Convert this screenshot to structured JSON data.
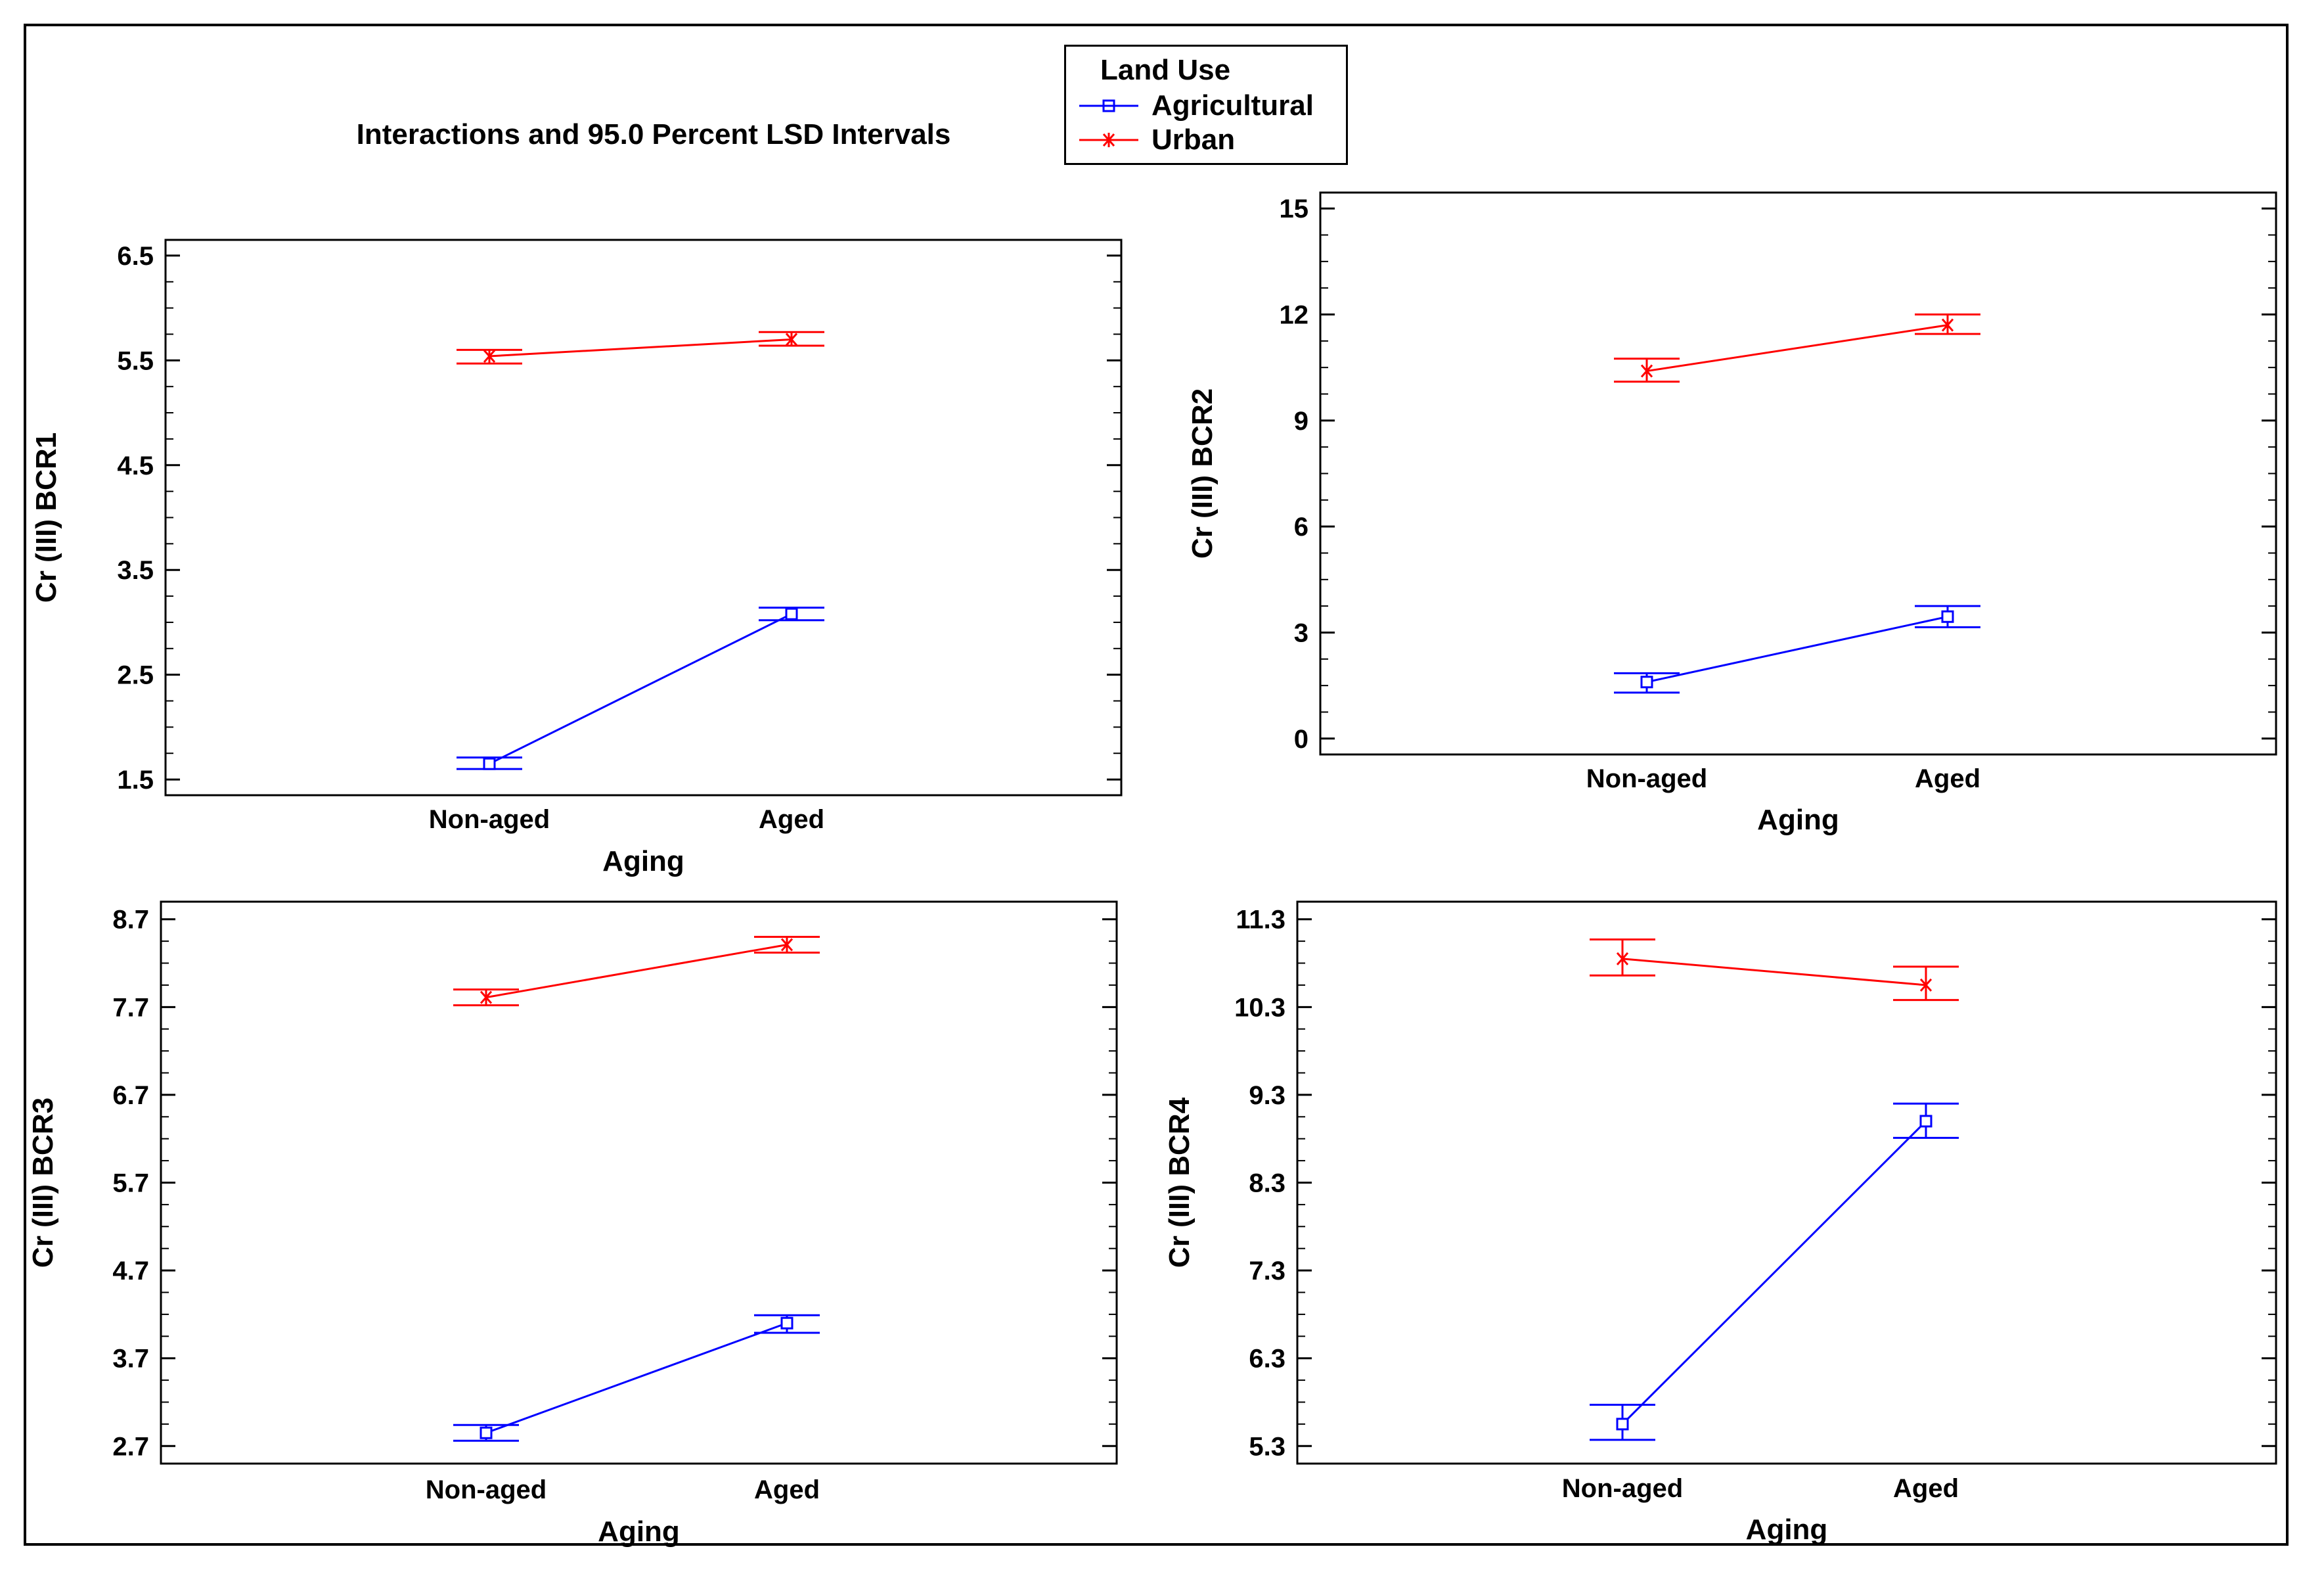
{
  "title": "Interactions and 95.0 Percent LSD Intervals",
  "legend": {
    "title": "Land Use",
    "items": [
      {
        "label": "Agricultural",
        "color": "#0000ff",
        "marker": "square"
      },
      {
        "label": "Urban",
        "color": "#ff0000",
        "marker": "star"
      }
    ]
  },
  "chart_data": [
    {
      "type": "line",
      "title": "",
      "xlabel": "Aging",
      "ylabel": "Cr (III) BCR1",
      "categories": [
        "Non-aged",
        "Aged"
      ],
      "yticks": [
        "1.5",
        "2.5",
        "3.5",
        "4.5",
        "5.5",
        "6.5"
      ],
      "ylim": [
        1.35,
        6.65
      ],
      "grid": false,
      "series": [
        {
          "name": "Agricultural",
          "color": "#0000ff",
          "marker": "square",
          "values": [
            1.65,
            3.08
          ],
          "ci_low": [
            1.6,
            3.02
          ],
          "ci_high": [
            1.71,
            3.14
          ]
        },
        {
          "name": "Urban",
          "color": "#ff0000",
          "marker": "star",
          "values": [
            5.54,
            5.7
          ],
          "ci_low": [
            5.47,
            5.64
          ],
          "ci_high": [
            5.6,
            5.77
          ]
        }
      ]
    },
    {
      "type": "line",
      "title": "",
      "xlabel": "Aging",
      "ylabel": "Cr (III) BCR2",
      "categories": [
        "Non-aged",
        "Aged"
      ],
      "yticks": [
        "0",
        "3",
        "6",
        "9",
        "12",
        "15"
      ],
      "ylim": [
        -0.45,
        15.45
      ],
      "grid": false,
      "series": [
        {
          "name": "Agricultural",
          "color": "#0000ff",
          "marker": "square",
          "values": [
            1.6,
            3.45
          ],
          "ci_low": [
            1.3,
            3.15
          ],
          "ci_high": [
            1.85,
            3.75
          ]
        },
        {
          "name": "Urban",
          "color": "#ff0000",
          "marker": "star",
          "values": [
            10.4,
            11.7
          ],
          "ci_low": [
            10.1,
            11.45
          ],
          "ci_high": [
            10.75,
            12.0
          ]
        }
      ]
    },
    {
      "type": "line",
      "title": "",
      "xlabel": "Aging",
      "ylabel": "Cr (III) BCR3",
      "categories": [
        "Non-aged",
        "Aged"
      ],
      "yticks": [
        "2.7",
        "3.7",
        "4.7",
        "5.7",
        "6.7",
        "7.7",
        "8.7"
      ],
      "ylim": [
        2.5,
        8.9
      ],
      "grid": false,
      "series": [
        {
          "name": "Agricultural",
          "color": "#0000ff",
          "marker": "square",
          "values": [
            2.85,
            4.1
          ],
          "ci_low": [
            2.76,
            3.99
          ],
          "ci_high": [
            2.94,
            4.19
          ]
        },
        {
          "name": "Urban",
          "color": "#ff0000",
          "marker": "star",
          "values": [
            7.81,
            8.41
          ],
          "ci_low": [
            7.72,
            8.32
          ],
          "ci_high": [
            7.9,
            8.5
          ]
        }
      ]
    },
    {
      "type": "line",
      "title": "",
      "xlabel": "Aging",
      "ylabel": "Cr (III) BCR4",
      "categories": [
        "Non-aged",
        "Aged"
      ],
      "yticks": [
        "5.3",
        "6.3",
        "7.3",
        "8.3",
        "9.3",
        "10.3",
        "11.3"
      ],
      "ylim": [
        5.1,
        11.5
      ],
      "grid": false,
      "series": [
        {
          "name": "Agricultural",
          "color": "#0000ff",
          "marker": "square",
          "values": [
            5.55,
            9.0
          ],
          "ci_low": [
            5.37,
            8.81
          ],
          "ci_high": [
            5.77,
            9.2
          ]
        },
        {
          "name": "Urban",
          "color": "#ff0000",
          "marker": "star",
          "values": [
            10.85,
            10.55
          ],
          "ci_low": [
            10.66,
            10.38
          ],
          "ci_high": [
            11.07,
            10.76
          ]
        }
      ]
    }
  ]
}
